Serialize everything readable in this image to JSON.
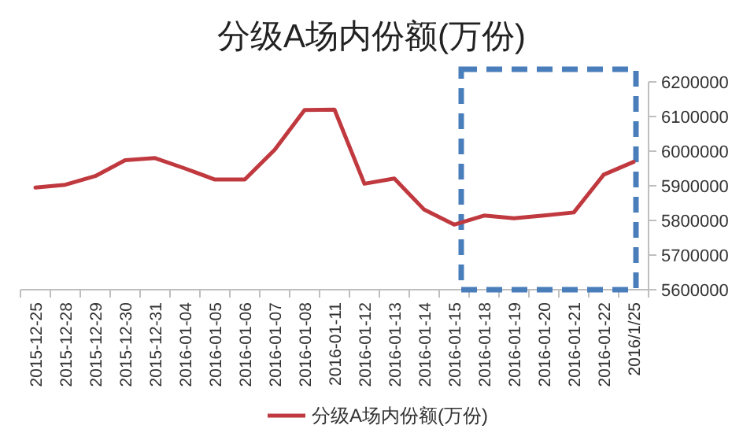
{
  "chart_data": {
    "type": "line",
    "title": "分级A场内份额(万份)",
    "categories": [
      "2015-12-25",
      "2015-12-28",
      "2015-12-29",
      "2015-12-30",
      "2015-12-31",
      "2016-01-04",
      "2016-01-05",
      "2016-01-06",
      "2016-01-07",
      "2016-01-08",
      "2016-01-11",
      "2016-01-12",
      "2016-01-13",
      "2016-01-14",
      "2016-01-15",
      "2016-01-18",
      "2016-01-19",
      "2016-01-20",
      "2016-01-21",
      "2016-01-22",
      "2016/1/25"
    ],
    "series": [
      {
        "name": "分级A场内份额(万份)",
        "color": "#c0393f",
        "values": [
          5895000,
          5903000,
          5928000,
          5974000,
          5980000,
          5950000,
          5918000,
          5918000,
          6004000,
          6119000,
          6120000,
          5906000,
          5921000,
          5831000,
          5788000,
          5814000,
          5806000,
          5814000,
          5823000,
          5932000,
          5969000
        ]
      }
    ],
    "ylim": [
      5600000,
      6200000
    ],
    "yticks": [
      5600000,
      5700000,
      5800000,
      5900000,
      6000000,
      6100000,
      6200000
    ],
    "grid": false,
    "legend": "bottom"
  }
}
